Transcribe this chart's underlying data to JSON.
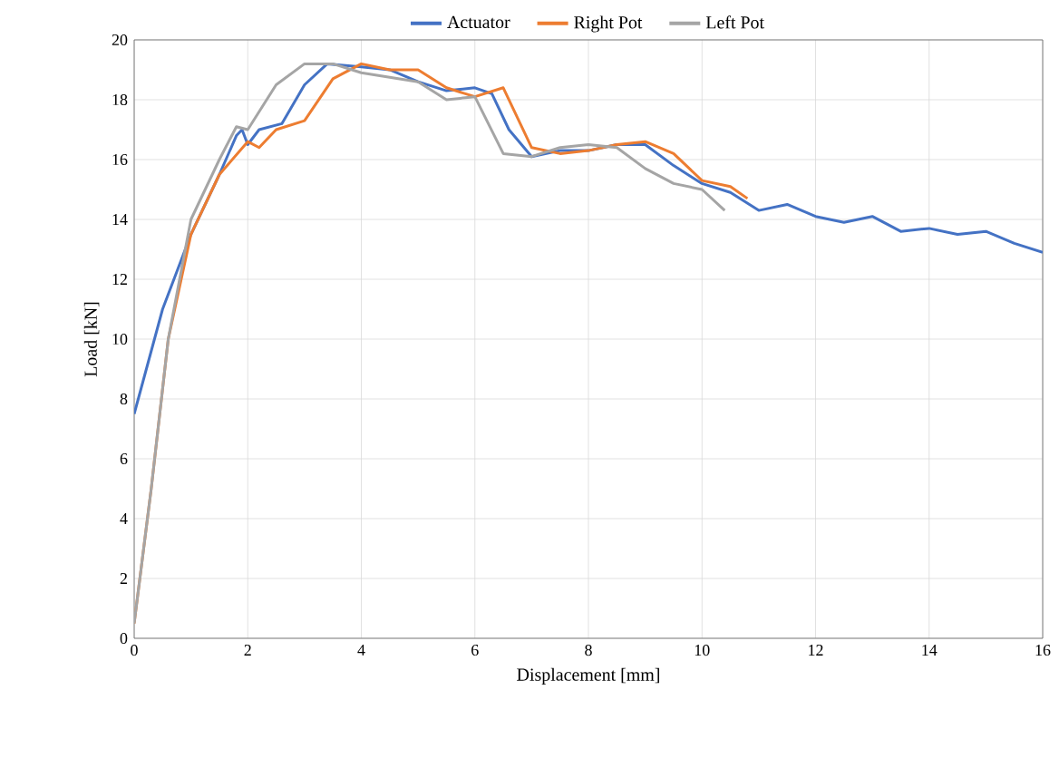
{
  "chart_data": {
    "type": "line",
    "xlabel": "Displacement [mm]",
    "ylabel": "Load [kN]",
    "xlim": [
      0,
      16
    ],
    "ylim": [
      0,
      20
    ],
    "xticks": [
      0,
      2,
      4,
      6,
      8,
      10,
      12,
      14,
      16
    ],
    "yticks": [
      0,
      2,
      4,
      6,
      8,
      10,
      12,
      14,
      16,
      18,
      20
    ],
    "grid": true,
    "legend": "top",
    "marker": "none",
    "line_style": "solid",
    "series": [
      {
        "name": "Actuator",
        "color": "#4472c4",
        "x": [
          0,
          0.5,
          1,
          1.5,
          1.8,
          1.9,
          2.0,
          2.2,
          2.6,
          3,
          3.4,
          4,
          4.5,
          5,
          5.5,
          6,
          6.3,
          6.6,
          7,
          7.5,
          8,
          8.5,
          9,
          9.5,
          10,
          10.5,
          11,
          11.5,
          12,
          12.5,
          13,
          13.5,
          14,
          14.5,
          15,
          15.5,
          16
        ],
        "values": [
          7.5,
          11,
          13.5,
          15.5,
          16.8,
          17,
          16.5,
          17,
          17.2,
          18.5,
          19.2,
          19.1,
          19,
          18.6,
          18.3,
          18.4,
          18.2,
          17,
          16.1,
          16.3,
          16.3,
          16.5,
          16.5,
          15.8,
          15.2,
          14.9,
          14.3,
          14.5,
          14.1,
          13.9,
          14.1,
          13.6,
          13.7,
          13.5,
          13.6,
          13.2,
          12.9
        ]
      },
      {
        "name": "Right Pot",
        "color": "#ed7d31",
        "x": [
          0,
          0.3,
          0.6,
          1,
          1.5,
          2,
          2.2,
          2.5,
          3,
          3.5,
          4,
          4.5,
          5,
          5.5,
          6,
          6.5,
          7,
          7.5,
          8,
          8.5,
          9,
          9.5,
          10,
          10.5,
          10.8
        ],
        "values": [
          0.5,
          5,
          10,
          13.5,
          15.5,
          16.6,
          16.4,
          17,
          17.3,
          18.7,
          19.2,
          19,
          19,
          18.4,
          18.1,
          18.4,
          16.4,
          16.2,
          16.3,
          16.5,
          16.6,
          16.2,
          15.3,
          15.1,
          14.7
        ]
      },
      {
        "name": "Left Pot",
        "color": "#a5a5a5",
        "x": [
          0,
          0.3,
          0.6,
          1,
          1.5,
          1.8,
          2,
          2.5,
          3,
          3.5,
          4,
          5,
          5.5,
          6,
          6.5,
          7,
          7.5,
          8,
          8.5,
          9,
          9.5,
          10,
          10.4
        ],
        "values": [
          0.5,
          5,
          10,
          14,
          16,
          17.1,
          17,
          18.5,
          19.2,
          19.2,
          18.9,
          18.6,
          18,
          18.1,
          16.2,
          16.1,
          16.4,
          16.5,
          16.4,
          15.7,
          15.2,
          15,
          14.3
        ]
      }
    ]
  }
}
